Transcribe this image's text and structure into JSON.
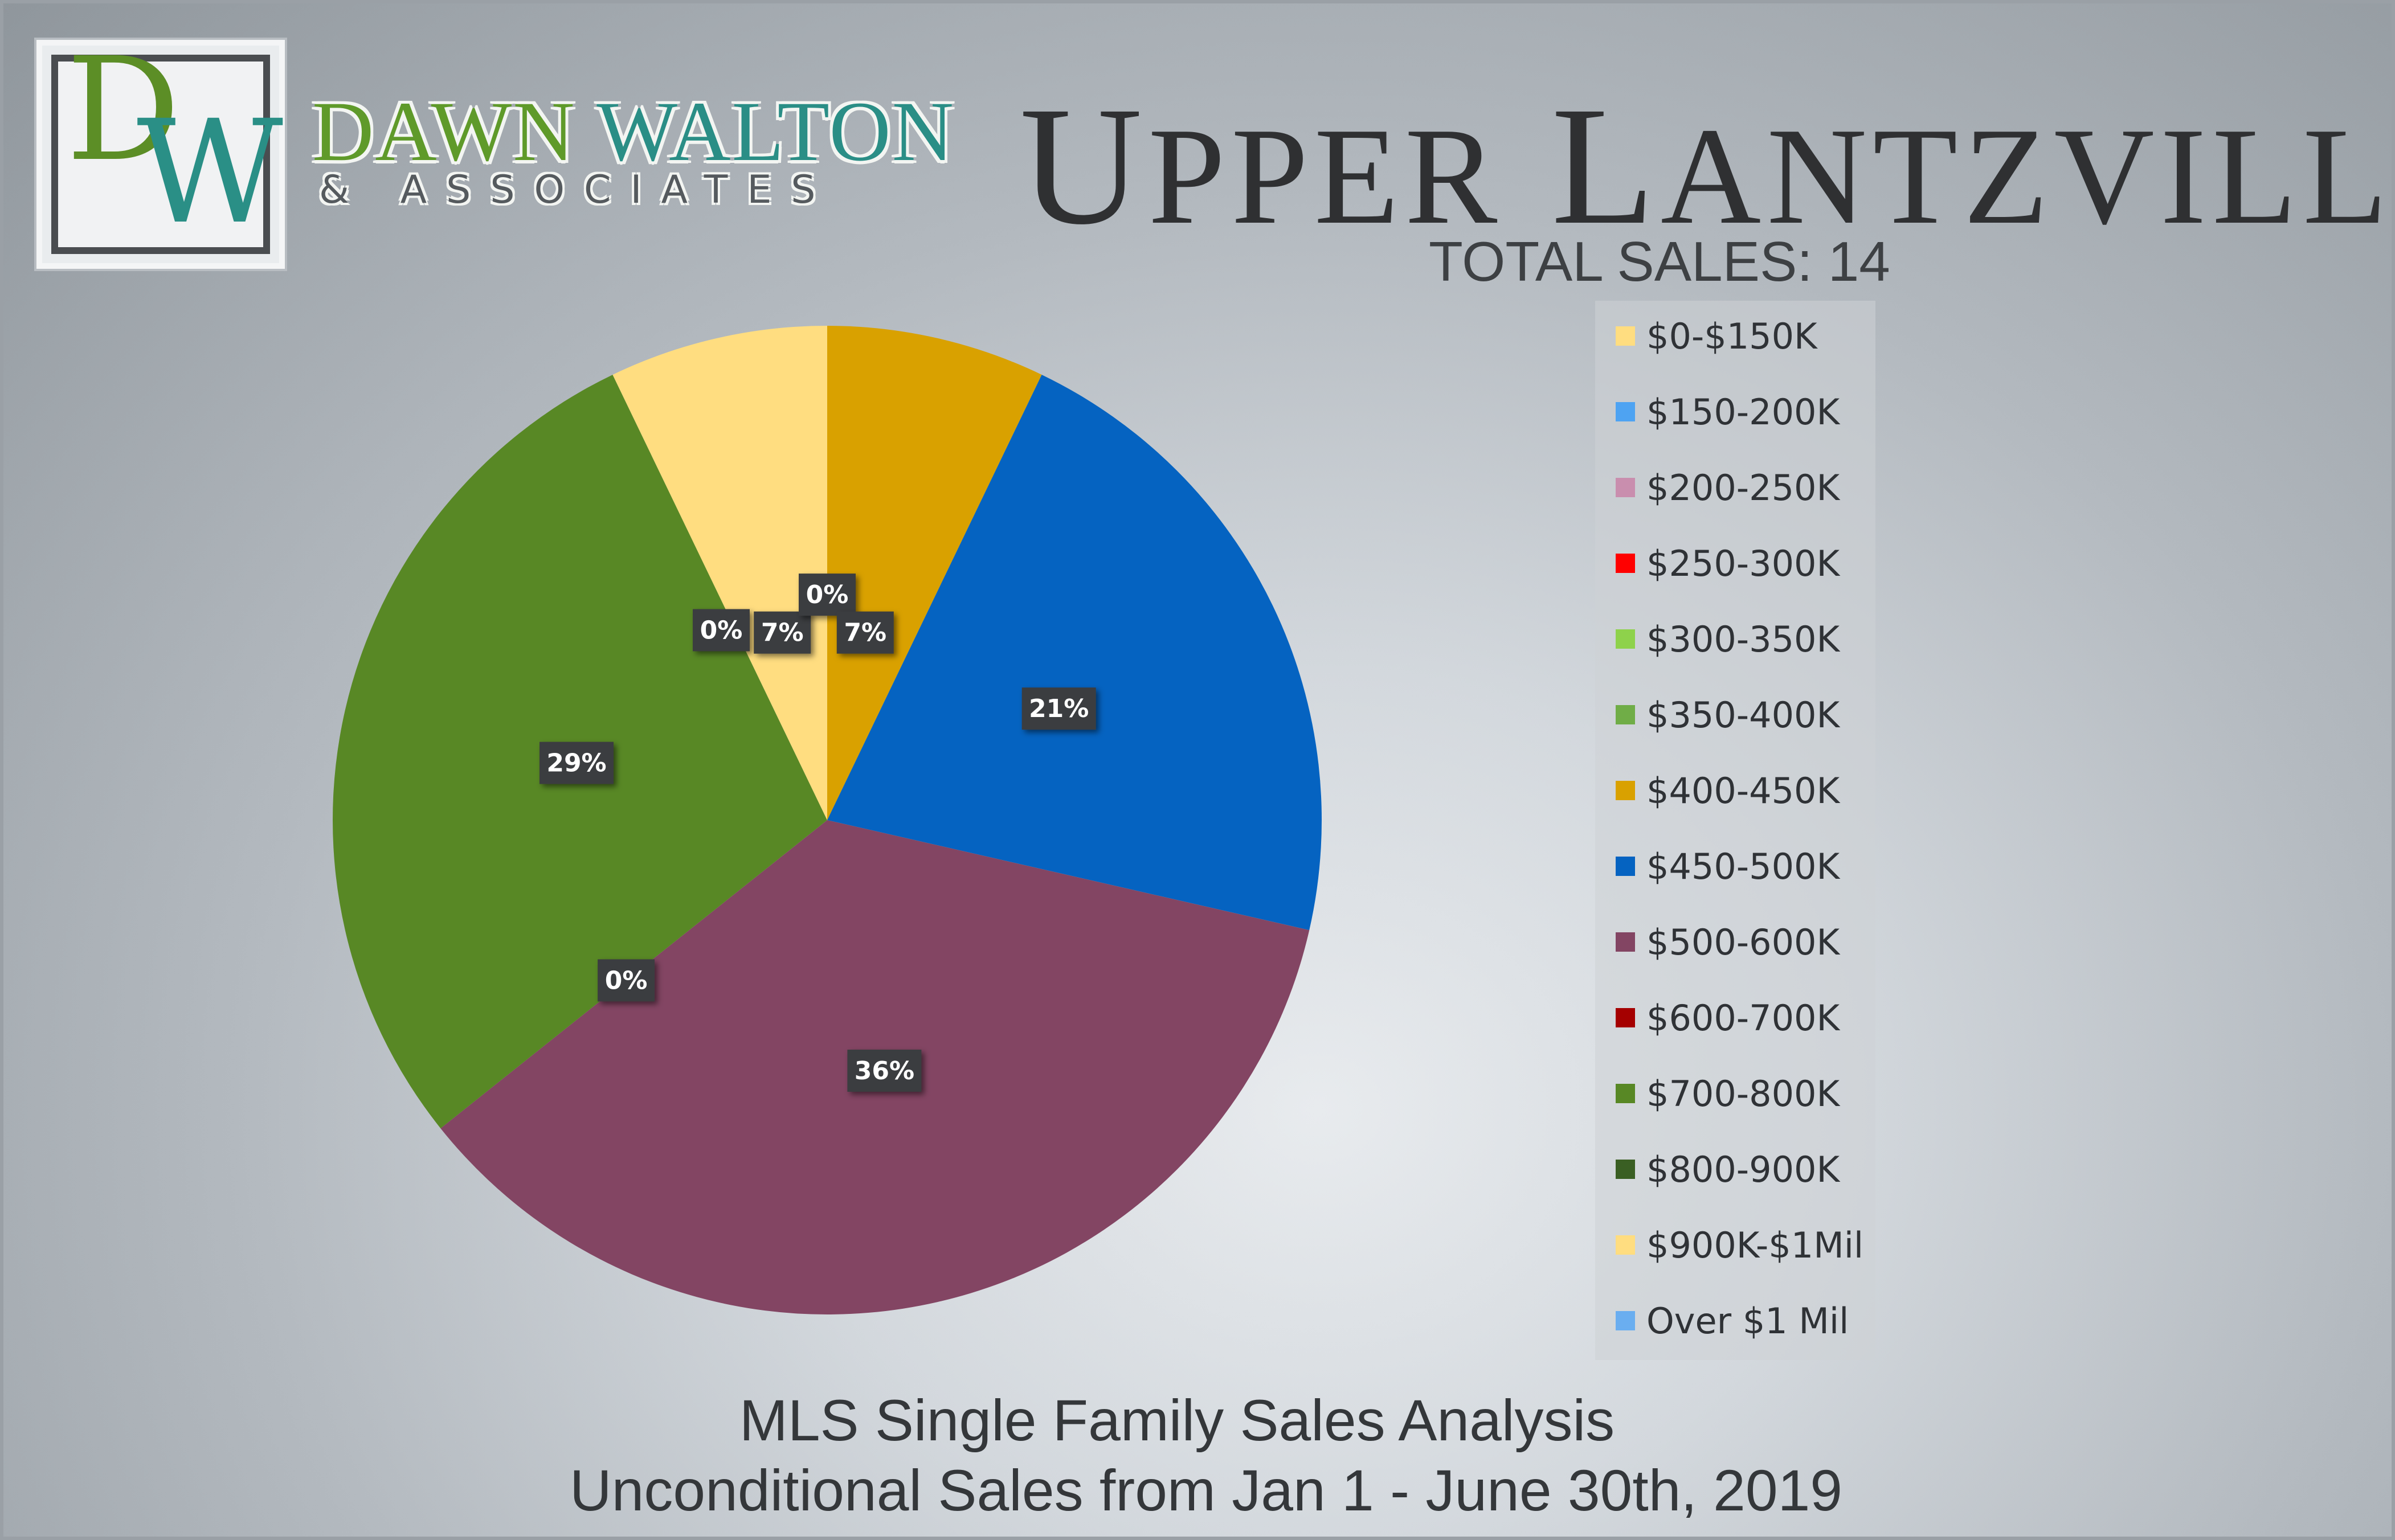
{
  "brand": {
    "logo_letters": [
      "D",
      "W"
    ],
    "name_part1": "DAWN",
    "name_part2": "WALTON",
    "subtitle": "& ASSOCIATES",
    "colors": {
      "green": "#5c8e26",
      "teal": "#2a8f86"
    }
  },
  "header": {
    "title_initial_1": "U",
    "title_rest_1": "PPER",
    "title_initial_2": "L",
    "title_rest_2": "ANTZVILLE",
    "total_sales": "TOTAL SALES: 14"
  },
  "footer": {
    "line1": "MLS Single Family Sales Analysis",
    "line2": "Unconditional Sales from Jan 1 - June 30th, 2019"
  },
  "chart_data": {
    "type": "pie",
    "title": "",
    "legend_position": "right",
    "categories": [
      "$0-$150K",
      "$150-200K",
      "$200-250K",
      "$250-300K",
      "$300-350K",
      "$350-400K",
      "$400-450K",
      "$450-500K",
      "$500-600K",
      "$600-700K",
      "$700-800K",
      "$800-900K",
      "$900K-$1Mil",
      "Over $1 Mil"
    ],
    "values": [
      0,
      0,
      0,
      0,
      0,
      0,
      1,
      3,
      5,
      0,
      4,
      0,
      1,
      0
    ],
    "percent_labels": [
      "0%",
      "0%",
      "0%",
      "0%",
      "0%",
      "0%",
      "7%",
      "21%",
      "36%",
      "0%",
      "29%",
      "0%",
      "7%",
      "0%"
    ],
    "shown_labels": [
      "0%",
      "7%",
      "21%",
      "36%",
      "0%",
      "29%",
      "0%",
      "7%"
    ],
    "colors": [
      "#ffdd80",
      "#4ea3f2",
      "#c98eae",
      "#ff0000",
      "#8ed24b",
      "#70ad47",
      "#d9a100",
      "#0563c1",
      "#834563",
      "#a50000",
      "#588825",
      "#3a5f23",
      "#ffdd80",
      "#6aaef0"
    ]
  }
}
